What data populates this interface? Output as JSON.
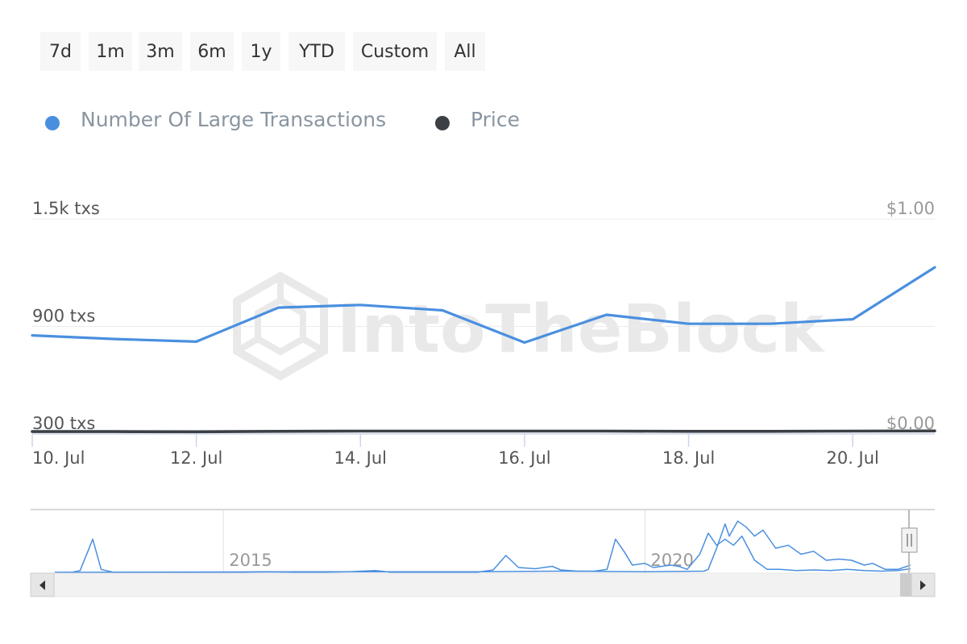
{
  "range_selector": {
    "buttons": [
      "7d",
      "1m",
      "3m",
      "6m",
      "1y",
      "YTD",
      "Custom",
      "All"
    ]
  },
  "legend": {
    "items": [
      {
        "label": "Number Of Large Transactions",
        "color": "#4a8fdf"
      },
      {
        "label": "Price",
        "color": "#3c4045"
      }
    ]
  },
  "watermark": "IntoTheBlock",
  "chart_data": {
    "type": "line",
    "x_dates": [
      "10. Jul",
      "11. Jul",
      "12. Jul",
      "13. Jul",
      "14. Jul",
      "15. Jul",
      "16. Jul",
      "17. Jul",
      "18. Jul",
      "19. Jul",
      "20. Jul",
      "21. Jul"
    ],
    "x_tick_labels": [
      "10. Jul",
      "12. Jul",
      "14. Jul",
      "16. Jul",
      "18. Jul",
      "20. Jul"
    ],
    "series": [
      {
        "name": "Number Of Large Transactions",
        "axis": "left",
        "color": "#4a8fdf",
        "values": [
          850,
          830,
          815,
          1005,
          1020,
          990,
          810,
          965,
          915,
          915,
          940,
          1230
        ]
      },
      {
        "name": "Price",
        "axis": "right",
        "color": "#3c4045",
        "values": [
          0.011,
          0.011,
          0.01,
          0.012,
          0.013,
          0.013,
          0.013,
          0.013,
          0.012,
          0.012,
          0.013,
          0.014
        ]
      }
    ],
    "y_left": {
      "min": 300,
      "max": 1500,
      "ticks": [
        300,
        900,
        1500
      ],
      "tick_labels": [
        "300 txs",
        "900 txs",
        "1.5k txs"
      ]
    },
    "y_right": {
      "min": 0,
      "max": 1,
      "ticks": [
        0,
        1
      ],
      "tick_labels": [
        "$0.00",
        "$1.00"
      ]
    },
    "grid": true,
    "legend_position": "top-left",
    "navigator": {
      "year_labels": [
        "2015",
        "2020"
      ],
      "years": [
        2015,
        2020
      ],
      "range": [
        2013.0,
        2023.15
      ],
      "series": [
        [
          2013.0,
          0
        ],
        [
          2013.2,
          0
        ],
        [
          2013.3,
          3
        ],
        [
          2013.45,
          55
        ],
        [
          2013.55,
          5
        ],
        [
          2013.7,
          0
        ],
        [
          2014.0,
          0
        ],
        [
          2014.5,
          0
        ],
        [
          2015.0,
          0
        ],
        [
          2015.5,
          1
        ],
        [
          2016.0,
          0
        ],
        [
          2016.5,
          1
        ],
        [
          2016.8,
          3
        ],
        [
          2017.0,
          0
        ],
        [
          2017.5,
          0
        ],
        [
          2018.0,
          0
        ],
        [
          2018.2,
          4
        ],
        [
          2018.35,
          28
        ],
        [
          2018.5,
          8
        ],
        [
          2018.7,
          6
        ],
        [
          2018.9,
          10
        ],
        [
          2019.0,
          4
        ],
        [
          2019.2,
          2
        ],
        [
          2019.4,
          2
        ],
        [
          2019.55,
          5
        ],
        [
          2019.65,
          55
        ],
        [
          2019.75,
          35
        ],
        [
          2019.85,
          12
        ],
        [
          2020.0,
          15
        ],
        [
          2020.1,
          8
        ],
        [
          2020.3,
          12
        ],
        [
          2020.4,
          10
        ],
        [
          2020.5,
          5
        ],
        [
          2020.65,
          30
        ],
        [
          2020.75,
          65
        ],
        [
          2020.85,
          45
        ],
        [
          2020.95,
          55
        ],
        [
          2021.05,
          45
        ],
        [
          2021.15,
          60
        ],
        [
          2021.3,
          20
        ],
        [
          2021.45,
          5
        ],
        [
          2021.6,
          5
        ],
        [
          2021.8,
          3
        ],
        [
          2022.0,
          4
        ],
        [
          2022.2,
          3
        ],
        [
          2022.4,
          5
        ],
        [
          2022.6,
          3
        ],
        [
          2022.8,
          2
        ],
        [
          2023.0,
          3
        ],
        [
          2023.15,
          6
        ]
      ],
      "series2": [
        [
          2013.0,
          0
        ],
        [
          2016.0,
          1
        ],
        [
          2018.0,
          1
        ],
        [
          2019.0,
          2
        ],
        [
          2020.0,
          1
        ],
        [
          2020.7,
          2
        ],
        [
          2020.75,
          5
        ],
        [
          2020.85,
          40
        ],
        [
          2020.95,
          80
        ],
        [
          2021.0,
          60
        ],
        [
          2021.1,
          85
        ],
        [
          2021.2,
          75
        ],
        [
          2021.3,
          60
        ],
        [
          2021.4,
          70
        ],
        [
          2021.55,
          40
        ],
        [
          2021.7,
          45
        ],
        [
          2021.85,
          30
        ],
        [
          2022.0,
          35
        ],
        [
          2022.15,
          20
        ],
        [
          2022.3,
          22
        ],
        [
          2022.45,
          20
        ],
        [
          2022.6,
          12
        ],
        [
          2022.7,
          15
        ],
        [
          2022.85,
          5
        ],
        [
          2023.0,
          5
        ],
        [
          2023.15,
          12
        ]
      ]
    }
  }
}
